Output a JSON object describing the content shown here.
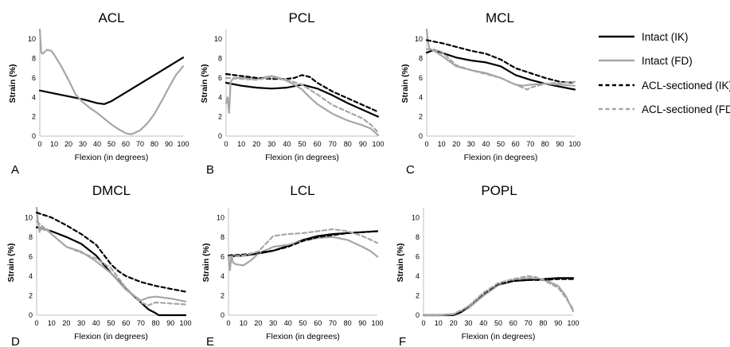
{
  "chart_data": {
    "type": "line",
    "xlabel": "Flexion (in degrees)",
    "ylabel": "Strain (%)",
    "xlim": [
      0,
      100
    ],
    "ylim": [
      0,
      11
    ],
    "xticks": [
      0,
      10,
      20,
      30,
      40,
      50,
      60,
      70,
      80,
      90,
      100
    ],
    "yticks": [
      0,
      2,
      4,
      6,
      8,
      10
    ],
    "legend": {
      "placement": "right",
      "entries": [
        {
          "name": "Intact (IK)",
          "color": "#000000",
          "dash": "solid"
        },
        {
          "name": "Intact (FD)",
          "color": "#a6a6a6",
          "dash": "solid"
        },
        {
          "name": "ACL-sectioned (IK)",
          "color": "#000000",
          "dash": "dashed"
        },
        {
          "name": "ACL-sectioned (FD)",
          "color": "#a6a6a6",
          "dash": "dashed"
        }
      ]
    },
    "panels": [
      {
        "title": "ACL",
        "label": "A",
        "series": [
          {
            "name": "Intact (IK)",
            "x": [
              0,
              10,
              20,
              30,
              40,
              45,
              50,
              60,
              70,
              80,
              90,
              100
            ],
            "y": [
              4.7,
              4.4,
              4.1,
              3.8,
              3.4,
              3.3,
              3.6,
              4.5,
              5.4,
              6.3,
              7.2,
              8.1
            ]
          },
          {
            "name": "Intact (FD)",
            "x": [
              0,
              1,
              2,
              5,
              8,
              10,
              15,
              20,
              25,
              30,
              35,
              40,
              45,
              50,
              55,
              60,
              63,
              65,
              70,
              75,
              80,
              85,
              90,
              95,
              100
            ],
            "y": [
              11,
              8.6,
              8.5,
              8.9,
              8.8,
              8.4,
              7.2,
              5.8,
              4.3,
              3.5,
              2.9,
              2.4,
              1.8,
              1.2,
              0.7,
              0.3,
              0.2,
              0.25,
              0.6,
              1.3,
              2.3,
              3.6,
              5.0,
              6.3,
              7.2
            ]
          }
        ]
      },
      {
        "title": "PCL",
        "label": "B",
        "series": [
          {
            "name": "Intact (IK)",
            "x": [
              0,
              10,
              20,
              30,
              40,
              50,
              60,
              70,
              80,
              90,
              100
            ],
            "y": [
              5.5,
              5.2,
              5.0,
              4.9,
              5.0,
              5.3,
              4.9,
              4.2,
              3.4,
              2.7,
              2.0
            ]
          },
          {
            "name": "Intact (FD)",
            "x": [
              0,
              1,
              2,
              3,
              5,
              10,
              20,
              30,
              35,
              40,
              45,
              50,
              55,
              60,
              70,
              80,
              90,
              95,
              100
            ],
            "y": [
              3.4,
              4.0,
              2.4,
              5.6,
              6.0,
              6.0,
              5.9,
              6.2,
              6.0,
              5.7,
              5.3,
              4.8,
              4.0,
              3.3,
              2.3,
              1.6,
              1.1,
              0.8,
              0.1
            ]
          },
          {
            "name": "ACL-sectioned (IK)",
            "x": [
              0,
              10,
              20,
              30,
              40,
              45,
              50,
              55,
              60,
              70,
              80,
              90,
              100
            ],
            "y": [
              6.4,
              6.2,
              6.0,
              5.9,
              5.9,
              6.0,
              6.3,
              6.1,
              5.5,
              4.6,
              3.9,
              3.2,
              2.5
            ]
          },
          {
            "name": "ACL-sectioned (FD)",
            "x": [
              0,
              10,
              20,
              30,
              40,
              50,
              60,
              70,
              80,
              90,
              95,
              100
            ],
            "y": [
              6.0,
              5.9,
              5.8,
              6.1,
              5.8,
              5.3,
              4.3,
              3.2,
              2.5,
              1.8,
              1.2,
              0.4
            ]
          }
        ]
      },
      {
        "title": "MCL",
        "label": "C",
        "series": [
          {
            "name": "Intact (IK)",
            "x": [
              0,
              5,
              10,
              20,
              30,
              40,
              50,
              60,
              70,
              80,
              90,
              100
            ],
            "y": [
              8.6,
              8.9,
              8.6,
              8.1,
              7.8,
              7.6,
              7.2,
              6.3,
              5.8,
              5.4,
              5.1,
              4.8
            ]
          },
          {
            "name": "Intact (FD)",
            "x": [
              0,
              1,
              2,
              5,
              10,
              20,
              30,
              40,
              50,
              60,
              65,
              70,
              80,
              90,
              100
            ],
            "y": [
              11,
              9.6,
              9.0,
              8.8,
              8.3,
              7.2,
              6.8,
              6.5,
              6.0,
              5.3,
              5.2,
              5.3,
              5.4,
              5.3,
              5.2
            ]
          },
          {
            "name": "ACL-sectioned (IK)",
            "x": [
              0,
              10,
              20,
              30,
              40,
              50,
              60,
              70,
              80,
              90,
              100
            ],
            "y": [
              9.9,
              9.6,
              9.2,
              8.8,
              8.5,
              7.9,
              7.0,
              6.5,
              6.0,
              5.6,
              5.5
            ]
          },
          {
            "name": "ACL-sectioned (FD)",
            "x": [
              0,
              10,
              20,
              30,
              40,
              50,
              60,
              68,
              70,
              80,
              90,
              100
            ],
            "y": [
              9.0,
              8.7,
              7.3,
              6.8,
              6.4,
              6.0,
              5.3,
              4.8,
              5.0,
              5.4,
              5.5,
              5.6
            ]
          }
        ]
      },
      {
        "title": "DMCL",
        "label": "D",
        "series": [
          {
            "name": "Intact (IK)",
            "x": [
              0,
              5,
              10,
              20,
              30,
              40,
              45,
              50,
              60,
              70,
              75,
              80,
              82,
              90,
              100
            ],
            "y": [
              9.0,
              8.8,
              8.6,
              8.0,
              7.3,
              6.1,
              5.2,
              4.3,
              2.7,
              1.3,
              0.6,
              0.2,
              0,
              0,
              0
            ]
          },
          {
            "name": "Intact (FD)",
            "x": [
              0,
              1,
              2,
              3,
              5,
              7,
              10,
              20,
              30,
              40,
              50,
              60,
              70,
              75,
              80,
              90,
              100
            ],
            "y": [
              11,
              9.5,
              8.5,
              9.0,
              8.7,
              8.8,
              8.3,
              7.0,
              6.5,
              5.5,
              4.3,
              2.6,
              1.5,
              1.8,
              1.9,
              1.7,
              1.4
            ]
          },
          {
            "name": "ACL-sectioned (IK)",
            "x": [
              0,
              10,
              20,
              30,
              40,
              45,
              50,
              55,
              60,
              70,
              80,
              90,
              100
            ],
            "y": [
              10.5,
              10.0,
              9.2,
              8.3,
              7.2,
              6.2,
              5.2,
              4.5,
              4.0,
              3.4,
              3.0,
              2.7,
              2.4
            ]
          },
          {
            "name": "ACL-sectioned (FD)",
            "x": [
              0,
              10,
              20,
              30,
              40,
              50,
              60,
              70,
              75,
              80,
              90,
              100
            ],
            "y": [
              9.6,
              8.3,
              7.0,
              6.4,
              5.8,
              4.8,
              2.8,
              1.3,
              1.0,
              1.3,
              1.2,
              1.1
            ]
          }
        ]
      },
      {
        "title": "LCL",
        "label": "E",
        "series": [
          {
            "name": "Intact (IK)",
            "x": [
              0,
              10,
              20,
              30,
              40,
              50,
              60,
              70,
              80,
              90,
              100
            ],
            "y": [
              6.0,
              6.1,
              6.3,
              6.6,
              7.1,
              7.7,
              8.1,
              8.3,
              8.4,
              8.5,
              8.6
            ]
          },
          {
            "name": "Intact (FD)",
            "x": [
              0,
              1,
              2,
              3,
              5,
              10,
              15,
              20,
              30,
              40,
              50,
              60,
              70,
              80,
              90,
              95,
              100
            ],
            "y": [
              6.0,
              4.6,
              6.2,
              5.4,
              5.2,
              5.1,
              5.6,
              6.3,
              7.0,
              7.2,
              7.6,
              7.9,
              8.0,
              7.7,
              7.0,
              6.6,
              6.0
            ]
          },
          {
            "name": "ACL-sectioned (IK)",
            "x": [
              0,
              10,
              20,
              30,
              40,
              50,
              60,
              70,
              80,
              90,
              100
            ],
            "y": [
              6.1,
              6.2,
              6.4,
              6.6,
              7.0,
              7.6,
              8.0,
              8.2,
              8.4,
              8.5,
              8.6
            ]
          },
          {
            "name": "ACL-sectioned (FD)",
            "x": [
              0,
              10,
              20,
              25,
              30,
              40,
              50,
              60,
              70,
              80,
              90,
              100
            ],
            "y": [
              6.0,
              6.1,
              6.5,
              7.3,
              8.1,
              8.3,
              8.4,
              8.6,
              8.8,
              8.6,
              8.1,
              7.4
            ]
          }
        ]
      },
      {
        "title": "POPL",
        "label": "F",
        "series": [
          {
            "name": "Intact (IK)",
            "x": [
              0,
              10,
              20,
              25,
              30,
              40,
              50,
              60,
              70,
              80,
              90,
              100
            ],
            "y": [
              0,
              0,
              0,
              0.3,
              0.8,
              2.0,
              3.1,
              3.5,
              3.6,
              3.7,
              3.8,
              3.8
            ]
          },
          {
            "name": "Intact (FD)",
            "x": [
              0,
              10,
              20,
              30,
              40,
              50,
              60,
              70,
              80,
              90,
              95,
              100
            ],
            "y": [
              0,
              0,
              0.1,
              0.7,
              2.0,
              3.1,
              3.6,
              3.8,
              3.7,
              3.0,
              2.0,
              0.4
            ]
          },
          {
            "name": "ACL-sectioned (IK)",
            "x": [
              0,
              10,
              20,
              25,
              30,
              40,
              50,
              60,
              70,
              80,
              90,
              100
            ],
            "y": [
              0,
              0,
              0.1,
              0.3,
              0.9,
              2.2,
              3.2,
              3.5,
              3.6,
              3.6,
              3.7,
              3.7
            ]
          },
          {
            "name": "ACL-sectioned (FD)",
            "x": [
              0,
              10,
              20,
              30,
              40,
              50,
              60,
              70,
              75,
              80,
              90,
              95,
              100
            ],
            "y": [
              0,
              0,
              0.1,
              0.9,
              2.3,
              3.3,
              3.7,
              4.0,
              3.9,
              3.6,
              2.8,
              1.8,
              0.6
            ]
          }
        ]
      }
    ]
  }
}
